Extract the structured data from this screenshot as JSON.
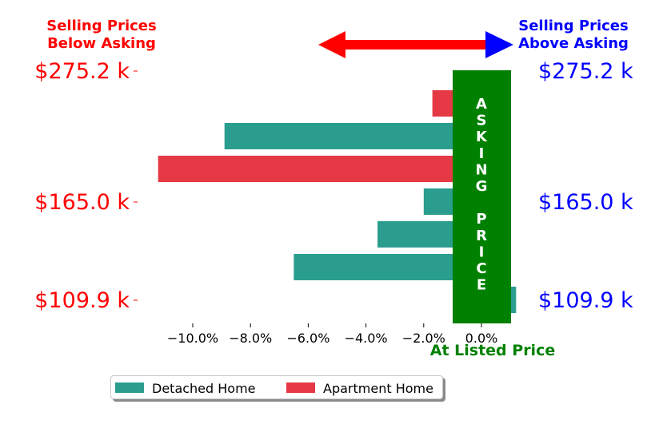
{
  "header": {
    "left_title_line1": "Selling Prices",
    "left_title_line2": "Below Asking",
    "right_title_line1": "Selling Prices",
    "right_title_line2": "Above Asking"
  },
  "asking_band": {
    "letters": [
      "A",
      "S",
      "K",
      "I",
      "N",
      "G",
      " ",
      "P",
      "R",
      "I",
      "C",
      "E"
    ],
    "caption": "At Listed Price"
  },
  "chart_data": {
    "type": "bar",
    "orientation": "horizontal",
    "x_tick_labels": [
      "−10.0%",
      "−8.0%",
      "−6.0%",
      "−4.0%",
      "−2.0%",
      "0.0%"
    ],
    "x_ticks": [
      -10,
      -8,
      -6,
      -4,
      -2,
      0
    ],
    "xlim": [
      -11.8,
      1.4
    ],
    "left_y_tick_labels": [
      "$275.2 k",
      "$165.0 k",
      "$109.9 k"
    ],
    "right_y_tick_labels": [
      "$275.2 k",
      "$165.0 k",
      "$109.9 k"
    ],
    "bars": [
      {
        "series": "Apartment Home",
        "value": -1.7
      },
      {
        "series": "Detached Home",
        "value": -8.9
      },
      {
        "series": "Apartment Home",
        "value": -11.2
      },
      {
        "series": "Detached Home",
        "value": -2.0
      },
      {
        "series": "Detached Home",
        "value": -3.6
      },
      {
        "series": "Detached Home",
        "value": -6.5
      },
      {
        "series": "Detached Home",
        "value": 1.2
      }
    ],
    "legend": [
      {
        "name": "Detached Home",
        "color": "#2a9d8f"
      },
      {
        "name": "Apartment Home",
        "color": "#e63946"
      }
    ],
    "legend_position": "bottom-left",
    "grid": false
  },
  "colors": {
    "detached": "#2a9d8f",
    "apartment": "#e63946",
    "band": "#008000",
    "left_text": "#ff0000",
    "right_text": "#0000ff",
    "caption": "#008000"
  }
}
